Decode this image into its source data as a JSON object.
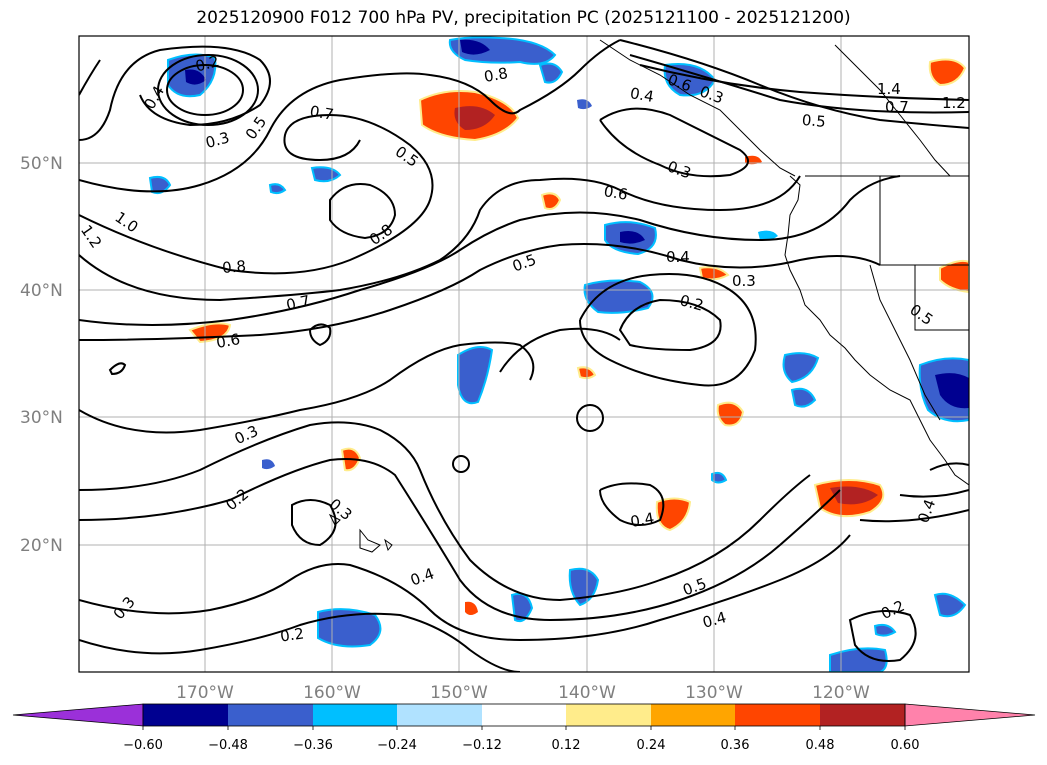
{
  "title": "2025120900 F012 700 hPa PV, precipitation PC (2025121100 - 2025121200)",
  "map": {
    "lat_labels": [
      "50°N",
      "40°N",
      "30°N",
      "20°N"
    ],
    "lon_labels": [
      "170°W",
      "160°W",
      "150°W",
      "140°W",
      "130°W",
      "120°W"
    ],
    "contour_labels": [
      "0.2",
      "0.4",
      "0.3",
      "0.5",
      "0.7",
      "0.8",
      "0.4",
      "0.6",
      "0.3",
      "1.4",
      "0.7",
      "1.2",
      "0.5",
      "0.5",
      "0.3",
      "0.6",
      "1.0",
      "1.2",
      "0.8",
      "0.8",
      "0.5",
      "0.4",
      "0.3",
      "0.7",
      "0.2",
      "0.6",
      "0.3",
      "0.2",
      "0.3",
      "0.4",
      "0.4",
      "0.5",
      "0.4",
      "0.2",
      "0.3",
      "0.4",
      "0.2",
      "0.5"
    ]
  },
  "colorbar": {
    "ticks": [
      "−0.60",
      "−0.48",
      "−0.36",
      "−0.24",
      "−0.12",
      "0.12",
      "0.24",
      "0.36",
      "0.48",
      "0.60"
    ],
    "colors": [
      "#9b30d9",
      "#000090",
      "#3a5fcd",
      "#00bfff",
      "#b0e2ff",
      "#ffffff",
      "#ffec8b",
      "#ffa500",
      "#ff4500",
      "#b22222",
      "#ff82ab"
    ]
  }
}
